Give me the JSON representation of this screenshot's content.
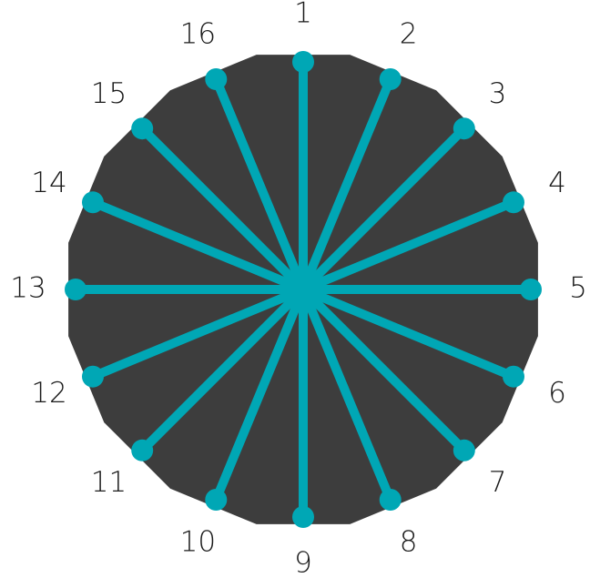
{
  "diagram": {
    "colors": {
      "disc": "#3d3d3d",
      "spoke": "#00a7b5",
      "label": "#1a1a1a",
      "background": "#ffffff"
    },
    "spokes": [
      {
        "label": "1"
      },
      {
        "label": "2"
      },
      {
        "label": "3"
      },
      {
        "label": "4"
      },
      {
        "label": "5"
      },
      {
        "label": "6"
      },
      {
        "label": "7"
      },
      {
        "label": "8"
      },
      {
        "label": "9"
      },
      {
        "label": "10"
      },
      {
        "label": "11"
      },
      {
        "label": "12"
      },
      {
        "label": "13"
      },
      {
        "label": "14"
      },
      {
        "label": "15"
      },
      {
        "label": "16"
      }
    ]
  }
}
